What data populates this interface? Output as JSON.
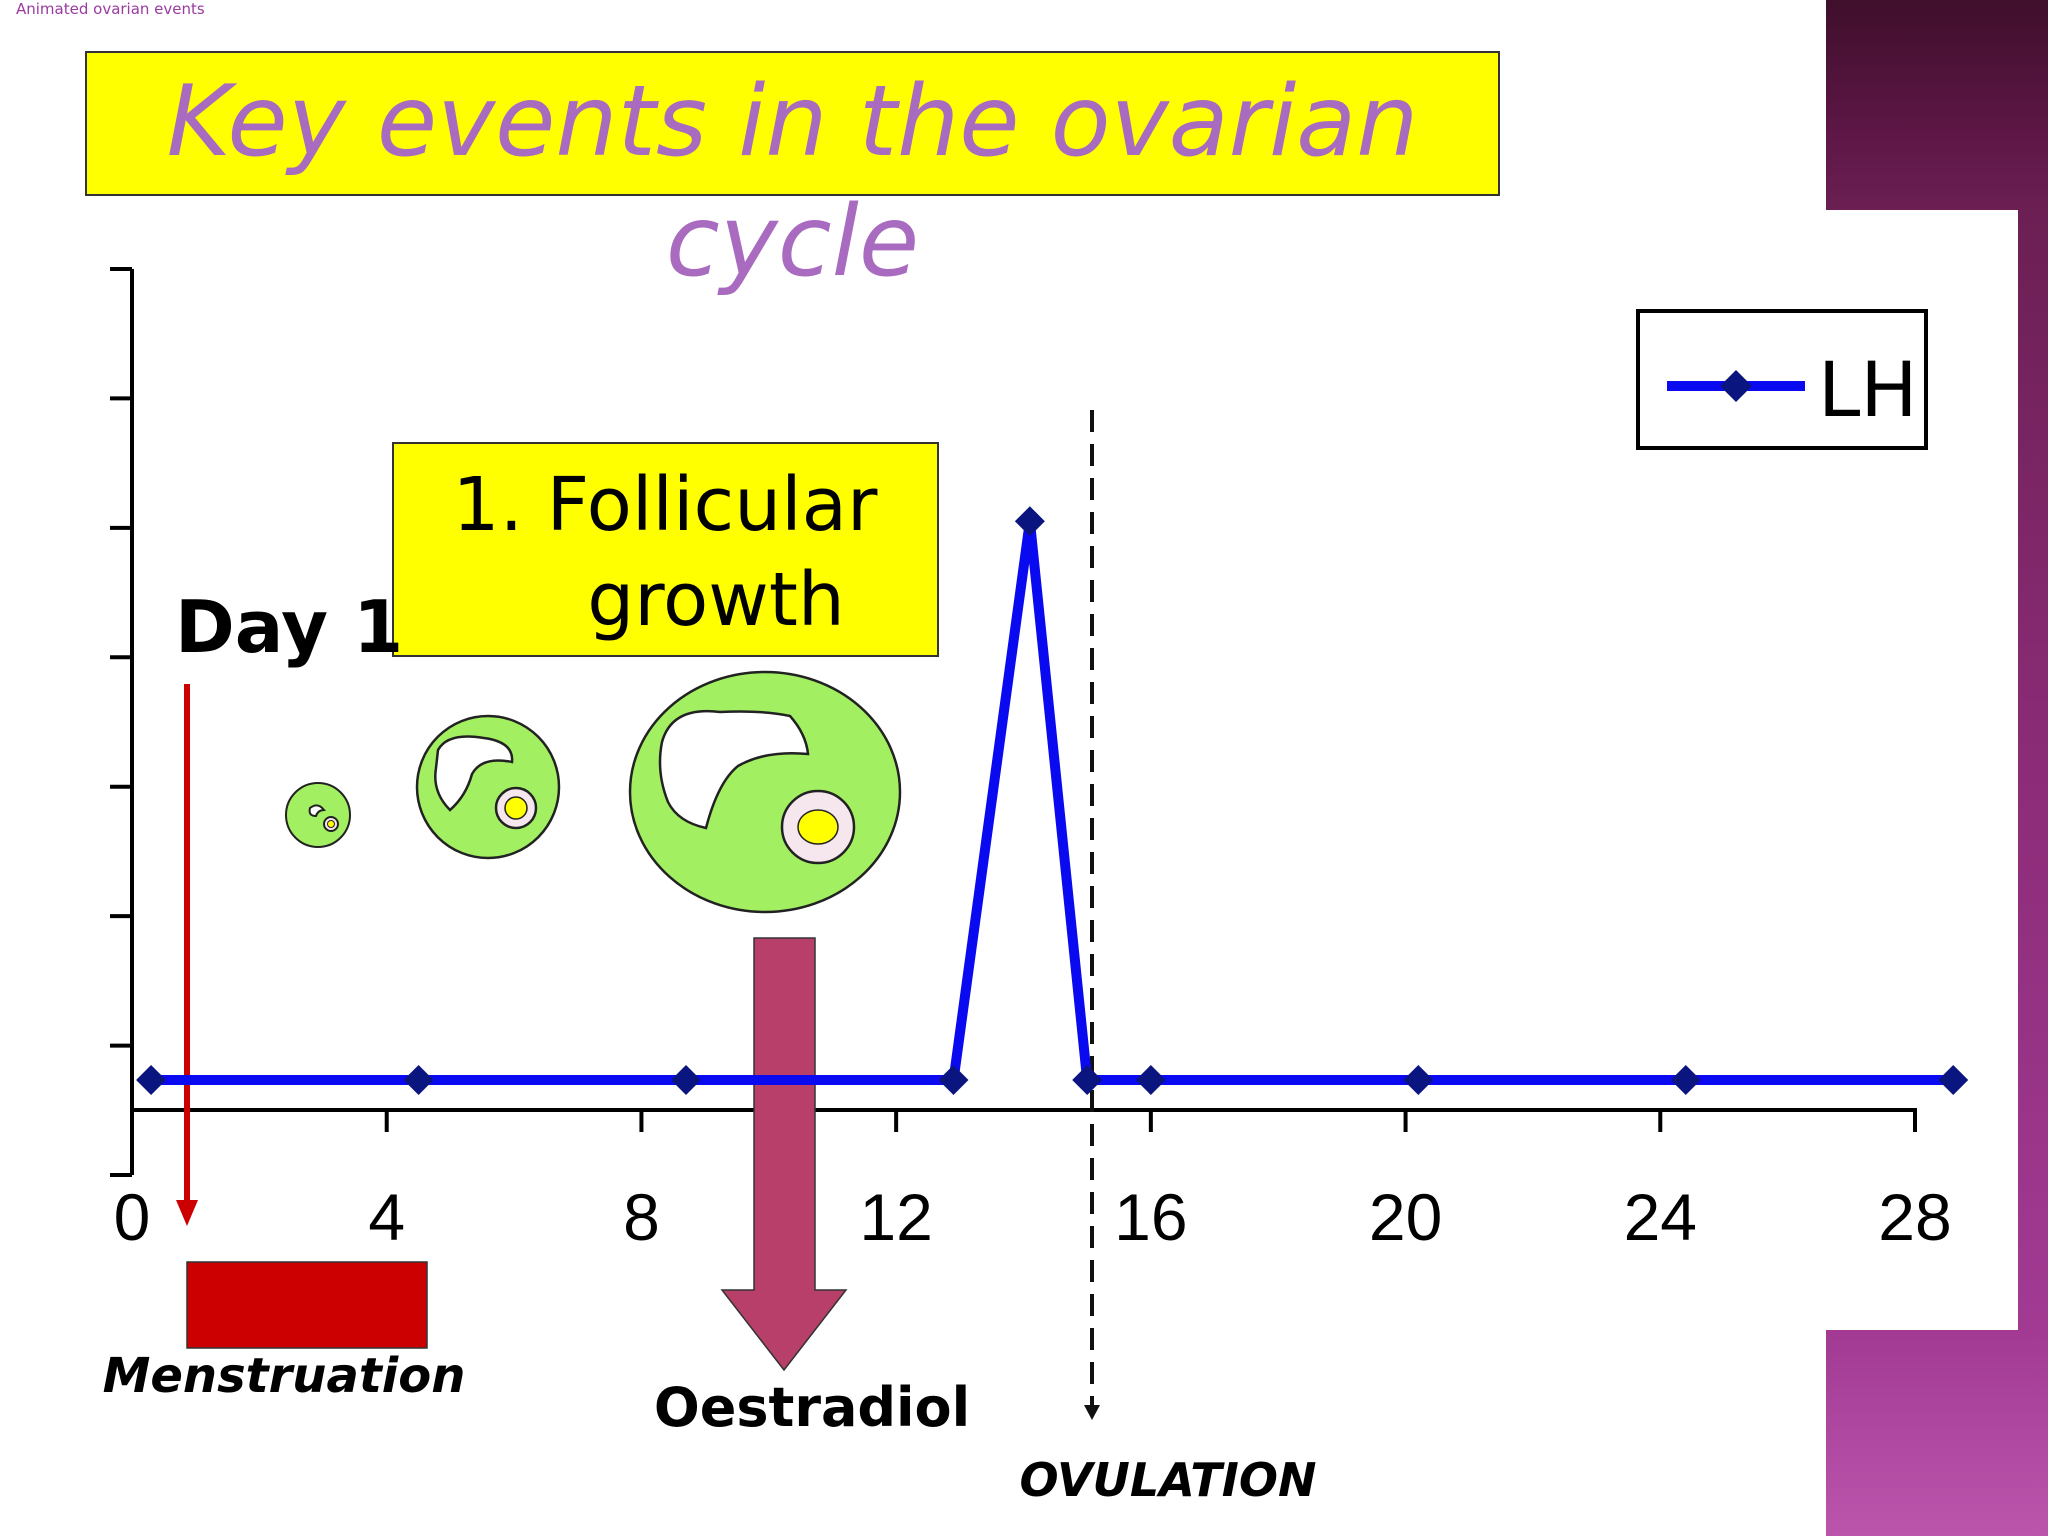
{
  "caption": "Animated ovarian events",
  "title": "Key events in the ovarian cycle",
  "callouts": {
    "day1": "Day 1",
    "follicular_line1": "1. Follicular",
    "follicular_line2": "growth",
    "menstruation": "Menstruation",
    "oestradiol": "Oestradiol",
    "ovulation": "OVULATION"
  },
  "colors": {
    "series": "#0a0af0",
    "marker": "#0b1580",
    "callout_yellow": "#ffff00",
    "menstruation_red": "#cc0000",
    "oestradiol_arrow": "#b83f69",
    "follicle_green": "#a3ef62",
    "title_purple": "#a86bc0"
  },
  "chart_data": {
    "type": "line",
    "xlim": [
      0,
      28
    ],
    "x_ticks": [
      0,
      4,
      8,
      12,
      16,
      20,
      24,
      28
    ],
    "ylim": [
      0,
      7
    ],
    "y_tick_count": 7,
    "legend_position": "top-right",
    "series": [
      {
        "name": "LH",
        "x": [
          0.3,
          4.5,
          8.7,
          12.9,
          14.1,
          15.0,
          16.0,
          20.2,
          24.4,
          28.6
        ],
        "y": [
          0.25,
          0.25,
          0.25,
          0.25,
          4.9,
          0.25,
          0.25,
          0.25,
          0.25,
          0.25
        ]
      }
    ],
    "annotations": [
      {
        "label": "Day 1",
        "x": 1
      },
      {
        "label": "Menstruation",
        "x_range": [
          1,
          4.6
        ]
      },
      {
        "label": "Oestradiol",
        "x": 10.2
      },
      {
        "label": "OVULATION",
        "x": 15.1
      }
    ]
  }
}
